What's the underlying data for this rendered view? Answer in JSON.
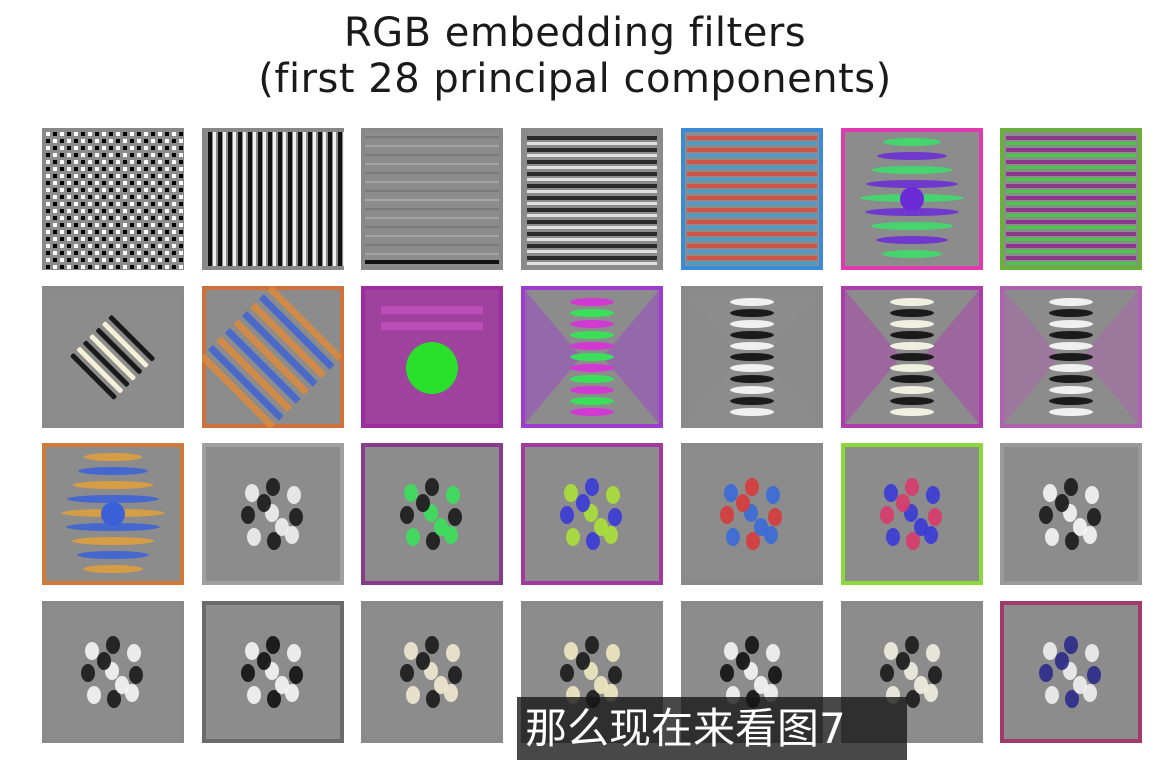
{
  "figure": {
    "title_line1": "RGB embedding filters",
    "title_line2": "(first 28 principal components)",
    "rows": 4,
    "cols": 7,
    "filters": [
      {
        "pattern": "checker",
        "colors": [
          "#000000",
          "#ffffff"
        ],
        "border": "#888888"
      },
      {
        "pattern": "vstripes",
        "colors": [
          "#111111",
          "#f0f0f0"
        ],
        "border": "#888888"
      },
      {
        "pattern": "hstripes-faint",
        "colors": [
          "#7a7a7a",
          "#a5a5a5"
        ],
        "border": "#888888"
      },
      {
        "pattern": "hstripes",
        "colors": [
          "#1a1a1a",
          "#eeeeee"
        ],
        "border": "#8a8a8a"
      },
      {
        "pattern": "hstripes",
        "colors": [
          "#d84a3a",
          "#3aa0d8"
        ],
        "border": "#3a8ad8"
      },
      {
        "pattern": "blob-stripes",
        "colors": [
          "#6a2ad8",
          "#3ae06a"
        ],
        "border": "#e03ab0"
      },
      {
        "pattern": "hstripes",
        "colors": [
          "#8a2a8a",
          "#3ad83a"
        ],
        "border": "#6ab03a"
      },
      {
        "pattern": "diag",
        "colors": [
          "#1a1a1a",
          "#f5f0d8"
        ],
        "border": "#8a8a8a"
      },
      {
        "pattern": "diag-color",
        "colors": [
          "#3a60d8",
          "#e08a3a"
        ],
        "border": "#d0703a"
      },
      {
        "pattern": "blob",
        "colors": [
          "#2ae02a",
          "#a03aa0"
        ],
        "border": "#a02aa0"
      },
      {
        "pattern": "center-stripes",
        "colors": [
          "#3ae05a",
          "#d03ad0"
        ],
        "border": "#a03ad0"
      },
      {
        "pattern": "center-stripes",
        "colors": [
          "#1a1a1a",
          "#f0f0f0"
        ],
        "border": "#8a8a8a"
      },
      {
        "pattern": "center-stripes",
        "colors": [
          "#1a1a1a",
          "#f0f0e0"
        ],
        "border": "#b03ab0"
      },
      {
        "pattern": "center-stripes",
        "colors": [
          "#1a1a1a",
          "#f0f0f0"
        ],
        "border": "#b060b0"
      },
      {
        "pattern": "blob-stripes",
        "colors": [
          "#3a60d8",
          "#e0a03a"
        ],
        "border": "#d07a3a"
      },
      {
        "pattern": "spots",
        "colors": [
          "#1a1a1a",
          "#f0f0f0"
        ],
        "border": "#a0a0a0"
      },
      {
        "pattern": "spots",
        "colors": [
          "#1a1a1a",
          "#3ae05a"
        ],
        "border": "#8a3a8a"
      },
      {
        "pattern": "spots",
        "colors": [
          "#3a3ad8",
          "#aae03a"
        ],
        "border": "#a03aa0"
      },
      {
        "pattern": "spots",
        "colors": [
          "#d83a3a",
          "#3a6ad8"
        ],
        "border": "#8a8a8a"
      },
      {
        "pattern": "spots",
        "colors": [
          "#d83a6a",
          "#3a3ad8"
        ],
        "border": "#8ad83a"
      },
      {
        "pattern": "spots",
        "colors": [
          "#1a1a1a",
          "#f5f5f5"
        ],
        "border": "#9a9a9a"
      },
      {
        "pattern": "spots",
        "colors": [
          "#1a1a1a",
          "#f5f5f5"
        ],
        "border": "#8a8a8a"
      },
      {
        "pattern": "spots",
        "colors": [
          "#111111",
          "#f5f5f5"
        ],
        "border": "#6a6a6a"
      },
      {
        "pattern": "spots",
        "colors": [
          "#1a1a1a",
          "#f0e8d0"
        ],
        "border": "#8a8a8a"
      },
      {
        "pattern": "spots",
        "colors": [
          "#1a1a1a",
          "#f0e8c0"
        ],
        "border": "#8a8a8a"
      },
      {
        "pattern": "spots",
        "colors": [
          "#111111",
          "#f5f5f5"
        ],
        "border": "#8a8a8a"
      },
      {
        "pattern": "spots",
        "colors": [
          "#1a1a1a",
          "#f0f0e0"
        ],
        "border": "#8a8a8a"
      },
      {
        "pattern": "spots",
        "colors": [
          "#2a2a8a",
          "#f0f0f0"
        ],
        "border": "#a03a6a"
      }
    ]
  },
  "subtitle": {
    "text": "那么现在来看图7"
  }
}
